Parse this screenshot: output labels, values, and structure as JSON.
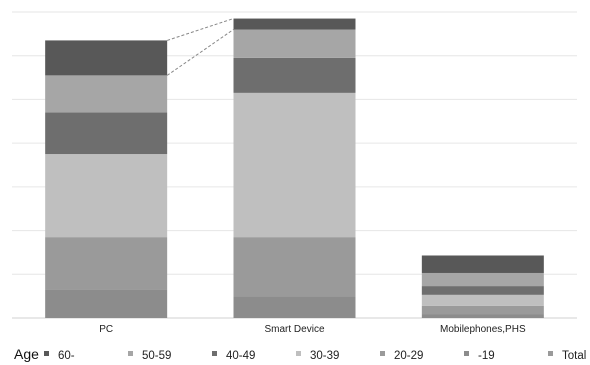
{
  "chart_data": {
    "type": "bar",
    "stacked": true,
    "title": "",
    "xlabel": "",
    "ylabel": "",
    "ylim": [
      0,
      7
    ],
    "yticks_labeled": false,
    "grid": true,
    "categories": [
      "PC",
      "Smart Device",
      "Mobilephones,PHS"
    ],
    "series": [
      {
        "name": "-19",
        "color": "#8c8c8c",
        "values": [
          0.65,
          0.5,
          0.08
        ]
      },
      {
        "name": "20-29",
        "color": "#9a9a9a",
        "values": [
          1.2,
          1.35,
          0.2
        ]
      },
      {
        "name": "30-39",
        "color": "#bfbfbf",
        "values": [
          1.9,
          3.3,
          0.25
        ]
      },
      {
        "name": "40-49",
        "color": "#6e6e6e",
        "values": [
          0.95,
          0.8,
          0.2
        ]
      },
      {
        "name": "50-59",
        "color": "#a6a6a6",
        "values": [
          0.85,
          0.65,
          0.3
        ]
      },
      {
        "name": "60-",
        "color": "#585858",
        "values": [
          0.8,
          0.25,
          0.4
        ]
      }
    ],
    "connector_lines": true,
    "legend": {
      "title": "Age",
      "placement": "bottom",
      "entries": [
        {
          "label": "60-",
          "color": "#585858"
        },
        {
          "label": "50-59",
          "color": "#a6a6a6"
        },
        {
          "label": "40-49",
          "color": "#6e6e6e"
        },
        {
          "label": "30-39",
          "color": "#bfbfbf"
        },
        {
          "label": "20-29",
          "color": "#9a9a9a"
        },
        {
          "label": "-19",
          "color": "#8c8c8c"
        },
        {
          "label": "Total",
          "color": "#9a9a9a"
        }
      ]
    }
  }
}
